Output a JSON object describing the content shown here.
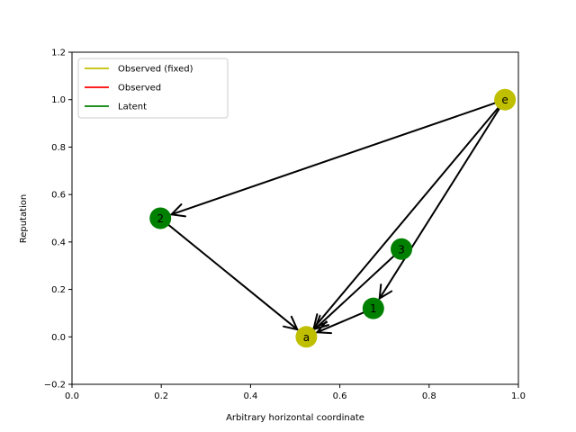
{
  "chart_data": {
    "type": "scatter",
    "xlabel": "Arbitrary horizontal coordinate",
    "ylabel": "Reputation",
    "xlim": [
      0.0,
      1.0
    ],
    "ylim": [
      -0.2,
      1.2
    ],
    "xticks": [
      "0.0",
      "0.2",
      "0.4",
      "0.6",
      "0.8",
      "1.0"
    ],
    "yticks": [
      "−0.2",
      "0.0",
      "0.2",
      "0.4",
      "0.6",
      "0.8",
      "1.0",
      "1.2"
    ],
    "grid": false,
    "legend_position": "top-left",
    "legend": [
      {
        "label": "Observed (fixed)",
        "color": "#bfbf00"
      },
      {
        "label": "Observed",
        "color": "#ff0000"
      },
      {
        "label": "Latent",
        "color": "#008000"
      }
    ],
    "nodes": [
      {
        "id": "a",
        "label": "a",
        "x": 0.525,
        "y": 0.0,
        "color": "#bfbf00"
      },
      {
        "id": "e",
        "label": "e",
        "x": 0.97,
        "y": 1.0,
        "color": "#bfbf00"
      },
      {
        "id": "1",
        "label": "1",
        "x": 0.675,
        "y": 0.12,
        "color": "#008000"
      },
      {
        "id": "2",
        "label": "2",
        "x": 0.198,
        "y": 0.5,
        "color": "#008000"
      },
      {
        "id": "3",
        "label": "3",
        "x": 0.738,
        "y": 0.37,
        "color": "#008000"
      }
    ],
    "edges": [
      {
        "from": "e",
        "to": "2"
      },
      {
        "from": "e",
        "to": "a"
      },
      {
        "from": "e",
        "to": "1"
      },
      {
        "from": "2",
        "to": "a"
      },
      {
        "from": "3",
        "to": "a"
      },
      {
        "from": "1",
        "to": "a"
      }
    ]
  }
}
